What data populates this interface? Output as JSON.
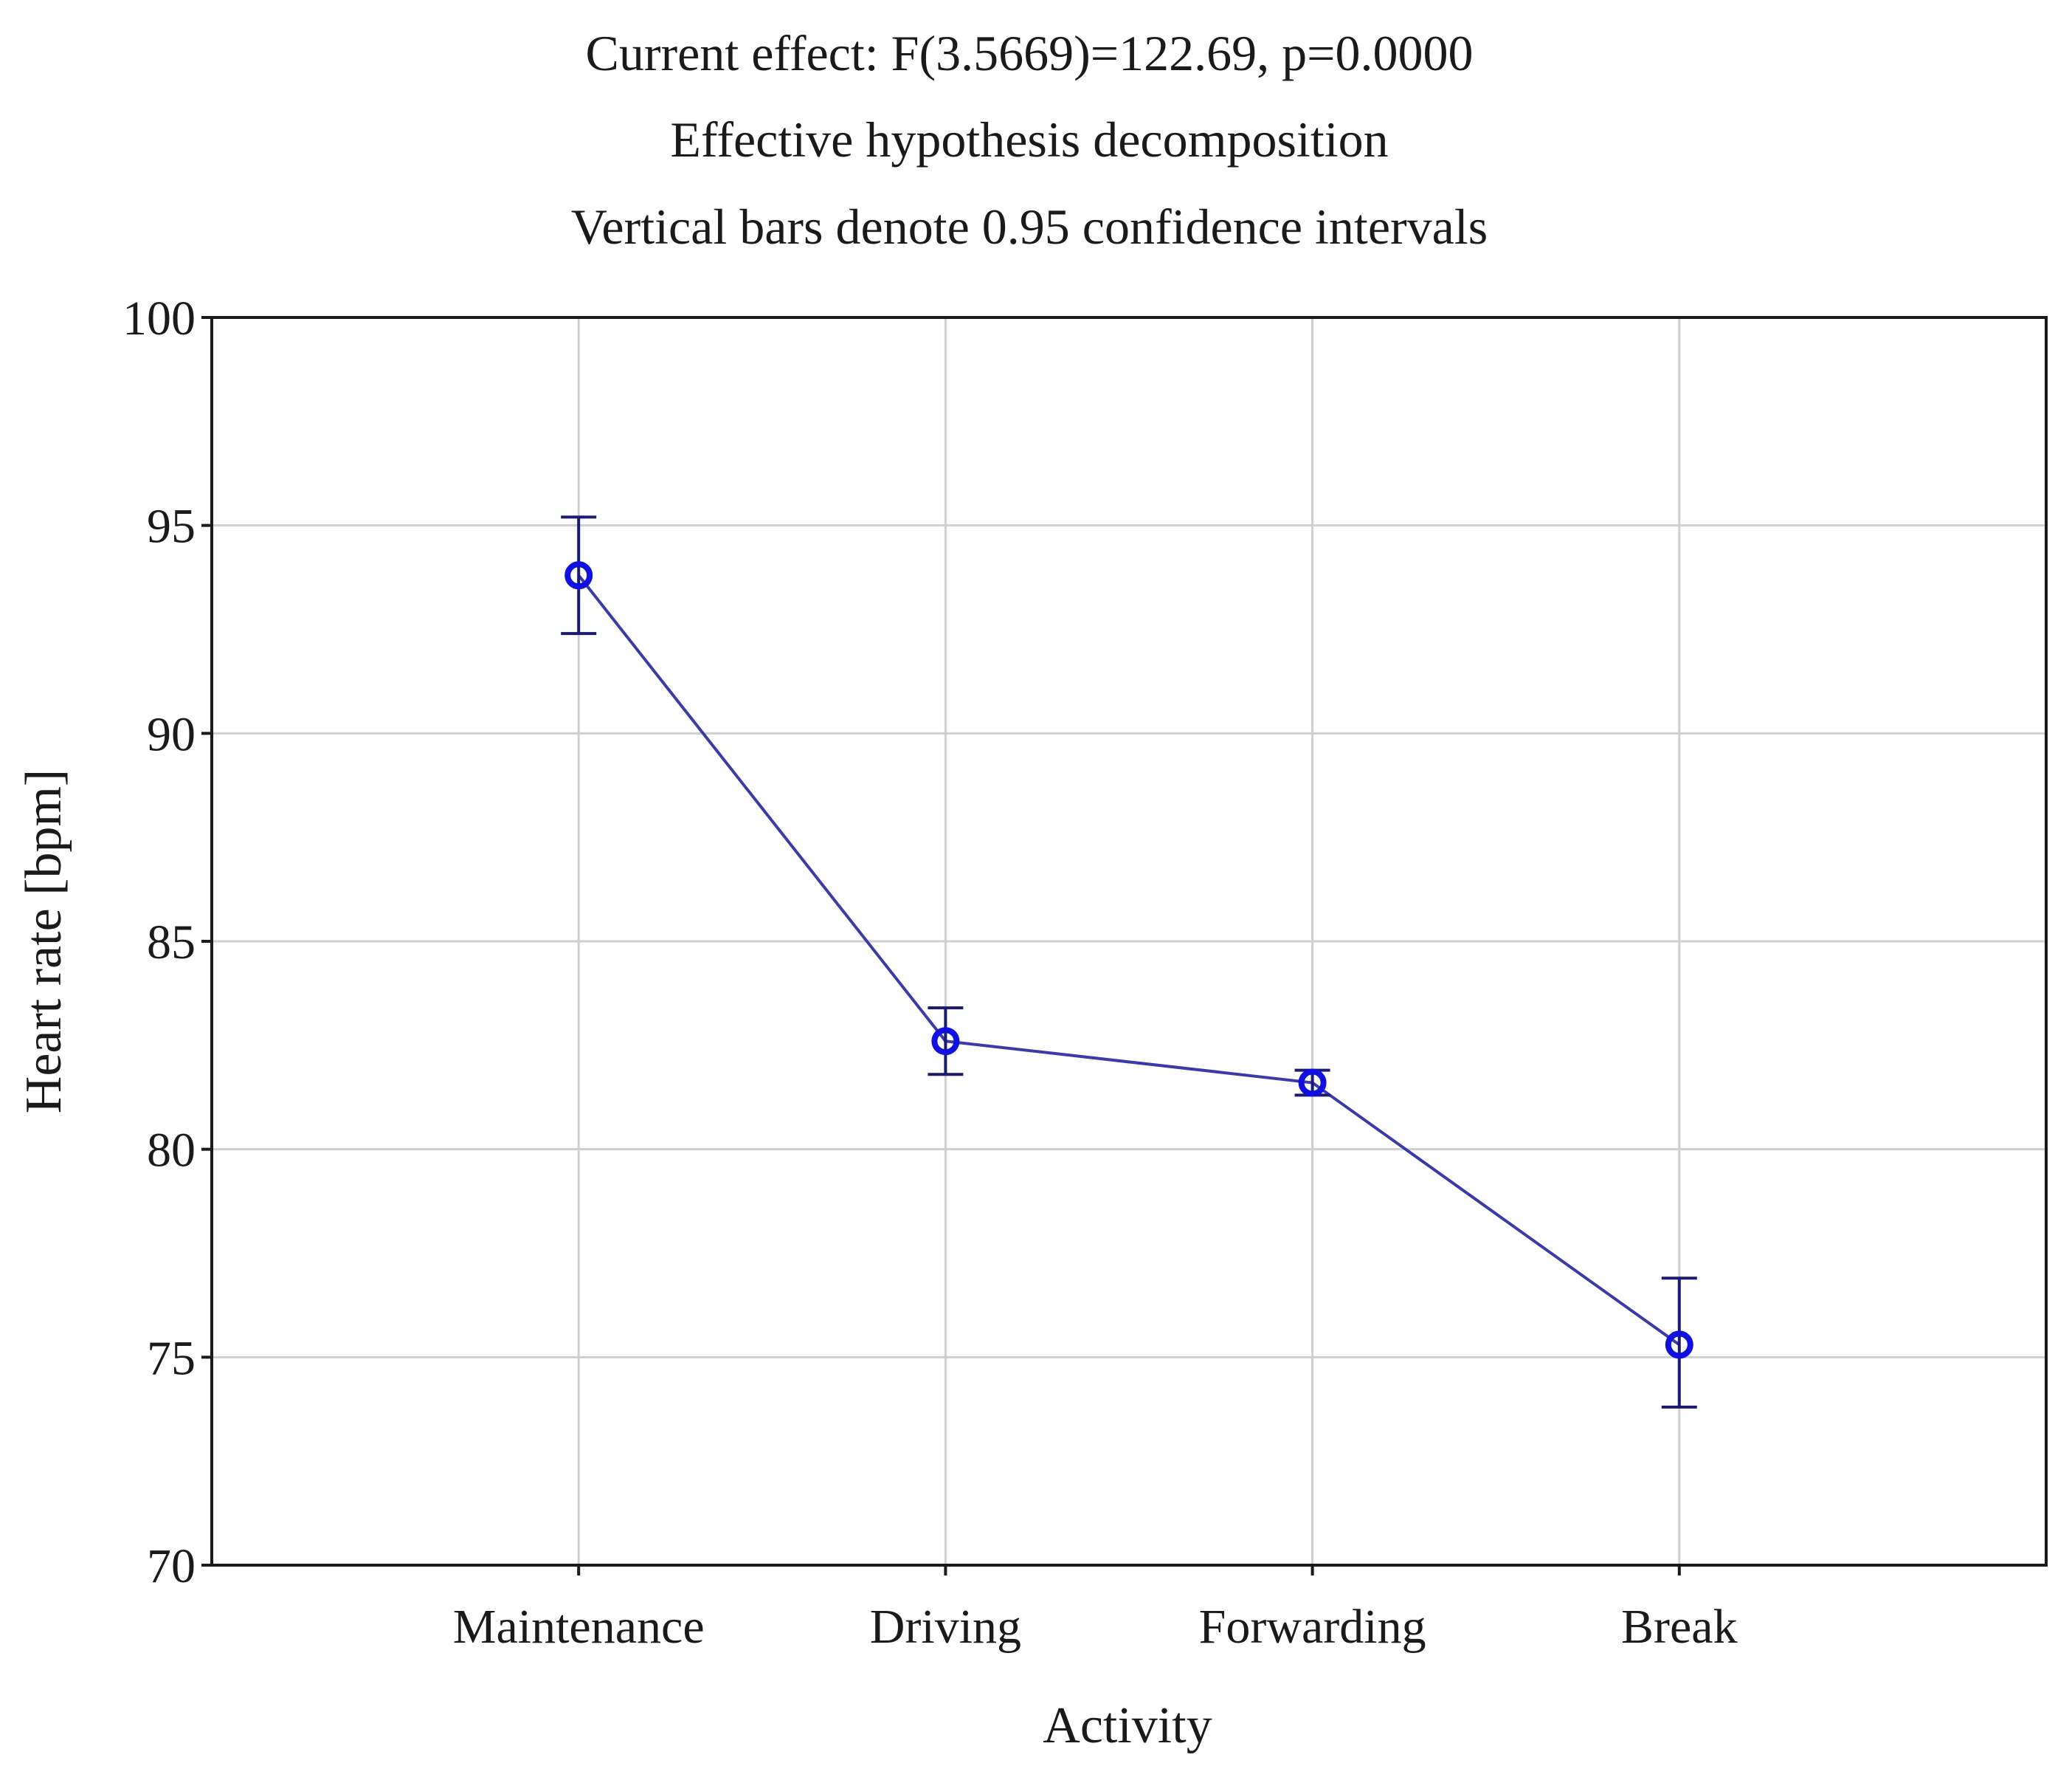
{
  "chart_data": {
    "type": "line",
    "title_lines": [
      "Current effect: F(3.5669)=122.69, p=0.0000",
      "Effective hypothesis decomposition",
      "Vertical bars denote 0.95 confidence intervals"
    ],
    "xlabel": "Activity",
    "ylabel": "Heart rate [bpm]",
    "categories": [
      "Maintenance",
      "Driving",
      "Forwarding",
      "Break"
    ],
    "values": [
      93.8,
      82.6,
      81.6,
      75.3
    ],
    "ci_lower": [
      92.4,
      81.8,
      81.3,
      73.8
    ],
    "ci_upper": [
      95.2,
      83.4,
      81.9,
      76.9
    ],
    "ylim": [
      70,
      100
    ],
    "yticks": [
      "70",
      "75",
      "80",
      "85",
      "90",
      "95",
      "100"
    ],
    "grid": true,
    "colors": {
      "marker": "#1010e0",
      "line": "#3a3aa8",
      "error_bar": "#1a1a6e",
      "grid": "#cfcfcf"
    }
  }
}
